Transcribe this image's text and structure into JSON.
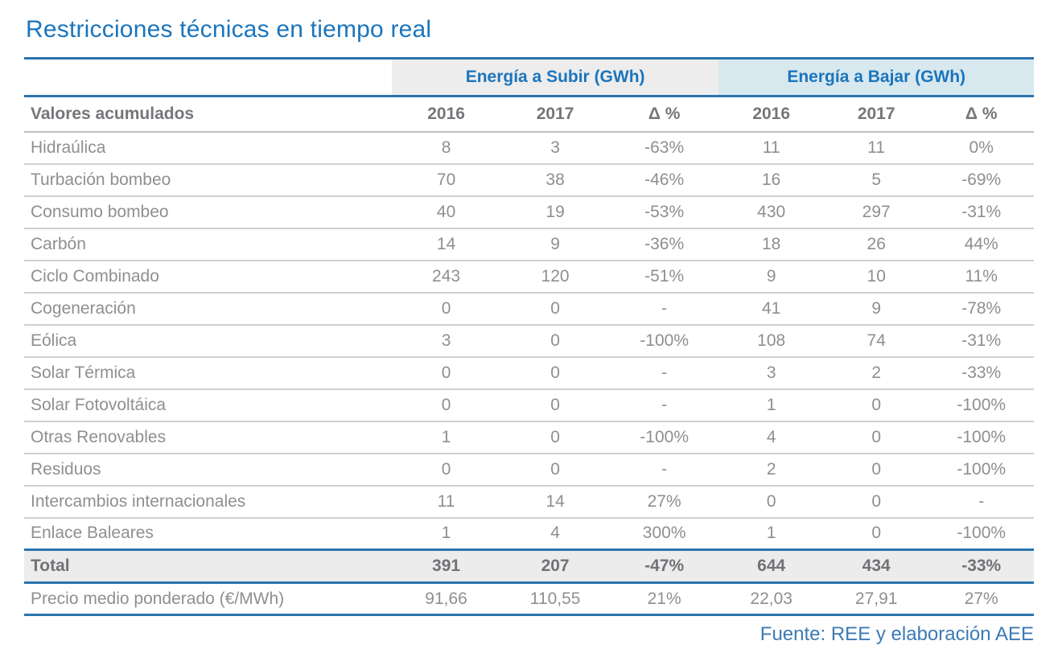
{
  "title": "Restricciones técnicas en tiempo real",
  "colors": {
    "accent_blue": "#1b75bc",
    "rule_blue": "#2a74ae",
    "subir_header_bg": "#ededee",
    "bajar_header_bg": "#d8e8ef",
    "total_row_bg": "#ececed",
    "body_text_gray": "#8e8f91",
    "header_text_gray": "#75767a",
    "row_separator_gray": "#cfd0d1"
  },
  "table": {
    "group_headers": [
      {
        "label": "Energía a Subir (GWh)"
      },
      {
        "label": "Energía a Bajar (GWh)"
      }
    ],
    "header": {
      "label": "Valores acumulados",
      "columns": [
        "2016",
        "2017",
        "Δ %",
        "2016",
        "2017",
        "Δ %"
      ]
    },
    "rows": [
      {
        "label": "Hidraúlica",
        "values": [
          "8",
          "3",
          "-63%",
          "11",
          "11",
          "0%"
        ]
      },
      {
        "label": "Turbación bombeo",
        "values": [
          "70",
          "38",
          "-46%",
          "16",
          "5",
          "-69%"
        ]
      },
      {
        "label": "Consumo bombeo",
        "values": [
          "40",
          "19",
          "-53%",
          "430",
          "297",
          "-31%"
        ]
      },
      {
        "label": "Carbón",
        "values": [
          "14",
          "9",
          "-36%",
          "18",
          "26",
          "44%"
        ]
      },
      {
        "label": "Ciclo Combinado",
        "values": [
          "243",
          "120",
          "-51%",
          "9",
          "10",
          "11%"
        ]
      },
      {
        "label": "Cogeneración",
        "values": [
          "0",
          "0",
          "-",
          "41",
          "9",
          "-78%"
        ]
      },
      {
        "label": "Eólica",
        "values": [
          "3",
          "0",
          "-100%",
          "108",
          "74",
          "-31%"
        ]
      },
      {
        "label": "Solar Térmica",
        "values": [
          "0",
          "0",
          "-",
          "3",
          "2",
          "-33%"
        ]
      },
      {
        "label": "Solar Fotovoltáica",
        "values": [
          "0",
          "0",
          "-",
          "1",
          "0",
          "-100%"
        ]
      },
      {
        "label": "Otras Renovables",
        "values": [
          "1",
          "0",
          "-100%",
          "4",
          "0",
          "-100%"
        ]
      },
      {
        "label": "Residuos",
        "values": [
          "0",
          "0",
          "-",
          "2",
          "0",
          "-100%"
        ]
      },
      {
        "label": "Intercambios internacionales",
        "values": [
          "11",
          "14",
          "27%",
          "0",
          "0",
          "-"
        ]
      },
      {
        "label": "Enlace Baleares",
        "values": [
          "1",
          "4",
          "300%",
          "1",
          "0",
          "-100%"
        ]
      }
    ],
    "total": {
      "label": "Total",
      "values": [
        "391",
        "207",
        "-47%",
        "644",
        "434",
        "-33%"
      ]
    },
    "price": {
      "label": "Precio medio ponderado (€/MWh)",
      "values": [
        "91,66",
        "110,55",
        "21%",
        "22,03",
        "27,91",
        "27%"
      ]
    }
  },
  "footer": {
    "source": "Fuente: REE y elaboración AEE"
  },
  "chart_data": {
    "type": "table",
    "title": "Restricciones técnicas en tiempo real",
    "column_groups": [
      "Energía a Subir (GWh)",
      "Energía a Bajar (GWh)"
    ],
    "columns": [
      "Valores acumulados",
      "Subir 2016",
      "Subir 2017",
      "Subir Δ %",
      "Bajar 2016",
      "Bajar 2017",
      "Bajar Δ %"
    ],
    "rows": [
      [
        "Hidraúlica",
        8,
        3,
        "-63%",
        11,
        11,
        "0%"
      ],
      [
        "Turbación bombeo",
        70,
        38,
        "-46%",
        16,
        5,
        "-69%"
      ],
      [
        "Consumo bombeo",
        40,
        19,
        "-53%",
        430,
        297,
        "-31%"
      ],
      [
        "Carbón",
        14,
        9,
        "-36%",
        18,
        26,
        "44%"
      ],
      [
        "Ciclo Combinado",
        243,
        120,
        "-51%",
        9,
        10,
        "11%"
      ],
      [
        "Cogeneración",
        0,
        0,
        "-",
        41,
        9,
        "-78%"
      ],
      [
        "Eólica",
        3,
        0,
        "-100%",
        108,
        74,
        "-31%"
      ],
      [
        "Solar Térmica",
        0,
        0,
        "-",
        3,
        2,
        "-33%"
      ],
      [
        "Solar Fotovoltáica",
        0,
        0,
        "-",
        1,
        0,
        "-100%"
      ],
      [
        "Otras Renovables",
        1,
        0,
        "-100%",
        4,
        0,
        "-100%"
      ],
      [
        "Residuos",
        0,
        0,
        "-",
        2,
        0,
        "-100%"
      ],
      [
        "Intercambios internacionales",
        11,
        14,
        "27%",
        0,
        0,
        "-"
      ],
      [
        "Enlace Baleares",
        1,
        4,
        "300%",
        1,
        0,
        "-100%"
      ],
      [
        "Total",
        391,
        207,
        "-47%",
        644,
        434,
        "-33%"
      ],
      [
        "Precio medio ponderado (€/MWh)",
        "91,66",
        "110,55",
        "21%",
        "22,03",
        "27,91",
        "27%"
      ]
    ],
    "source": "Fuente: REE y elaboración AEE"
  }
}
